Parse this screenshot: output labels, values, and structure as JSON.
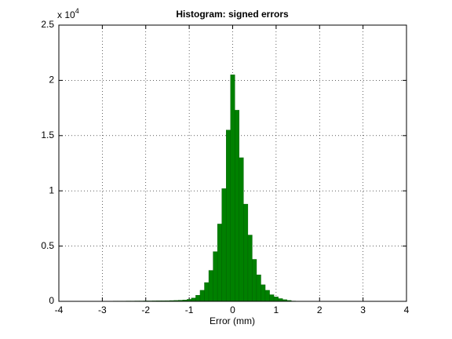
{
  "chart_data": {
    "type": "histogram",
    "title": "Histogram: signed errors",
    "x_label": "Error (mm)",
    "y_multiplier": {
      "base": "x 10",
      "exponent": "4"
    },
    "bins": [
      -3.25,
      -3.15,
      -3.05,
      -2.95,
      -2.85,
      -2.75,
      -2.65,
      -2.55,
      -2.45,
      -2.35,
      -2.25,
      -2.15,
      -2.05,
      -1.95,
      -1.85,
      -1.75,
      -1.65,
      -1.55,
      -1.45,
      -1.35,
      -1.25,
      -1.15,
      -1.05,
      -0.95,
      -0.85,
      -0.75,
      -0.65,
      -0.55,
      -0.45,
      -0.35,
      -0.25,
      -0.15,
      -0.05,
      0.05,
      0.15,
      0.25,
      0.35,
      0.45,
      0.55,
      0.65,
      0.75,
      0.85,
      0.95,
      1.05,
      1.15,
      1.25,
      1.35,
      1.45
    ],
    "values": [
      10,
      15,
      20,
      20,
      20,
      25,
      25,
      25,
      30,
      30,
      35,
      35,
      40,
      40,
      45,
      50,
      55,
      60,
      70,
      80,
      100,
      120,
      180,
      300,
      550,
      1000,
      1700,
      2800,
      4500,
      7000,
      10200,
      15500,
      20500,
      17300,
      13000,
      8800,
      6000,
      3800,
      2400,
      1500,
      1000,
      600,
      400,
      250,
      150,
      80,
      30
    ],
    "color": "#008000",
    "xlim": [
      -4,
      4
    ],
    "xticks": [
      -4,
      -3,
      -2,
      -1,
      0,
      1,
      2,
      3,
      4
    ],
    "ylim": [
      0,
      25000
    ],
    "yticks": [
      0,
      {
        "value": 5000,
        "label": "0.5"
      },
      {
        "value": 10000,
        "label": "1"
      },
      {
        "value": 15000,
        "label": "1.5"
      },
      {
        "value": 20000,
        "label": "2"
      },
      {
        "value": 25000,
        "label": "2.5"
      }
    ],
    "grid": true
  }
}
